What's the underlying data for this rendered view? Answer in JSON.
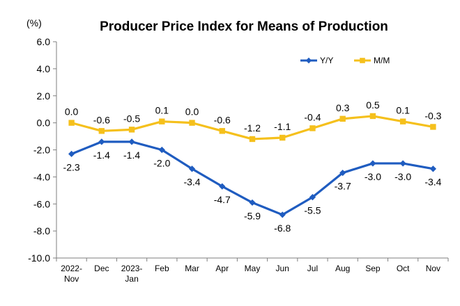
{
  "chart_data": {
    "type": "line",
    "title": "Producer Price Index for Means of Production",
    "unit_label": "(%)",
    "xlabel": "",
    "ylabel": "",
    "categories": [
      [
        "2022-",
        "Nov"
      ],
      [
        "Dec"
      ],
      [
        "2023-",
        "Jan"
      ],
      [
        "Feb"
      ],
      [
        "Mar"
      ],
      [
        "Apr"
      ],
      [
        "May"
      ],
      [
        "Jun"
      ],
      [
        "Jul"
      ],
      [
        "Aug"
      ],
      [
        "Sep"
      ],
      [
        "Oct"
      ],
      [
        "Nov"
      ]
    ],
    "ylim": [
      -10.0,
      6.0
    ],
    "yticks": [
      6.0,
      4.0,
      2.0,
      0.0,
      -2.0,
      -4.0,
      -6.0,
      -8.0,
      -10.0
    ],
    "ytick_labels": [
      "6.0",
      "4.0",
      "2.0",
      "0.0",
      "-2.0",
      "-4.0",
      "-6.0",
      "-8.0",
      "-10.0"
    ],
    "grid": false,
    "legend_position": "top-right",
    "series": [
      {
        "name": "Y/Y",
        "color": "#1F5CC0",
        "marker": "diamond",
        "label_position": "below",
        "values": [
          -2.3,
          -1.4,
          -1.4,
          -2.0,
          -3.4,
          -4.7,
          -5.9,
          -6.8,
          -5.5,
          -3.7,
          -3.0,
          -3.0,
          -3.4
        ],
        "labels": [
          "-2.3",
          "-1.4",
          "-1.4",
          "-2.0",
          "-3.4",
          "-4.7",
          "-5.9",
          "-6.8",
          "-5.5",
          "-3.7",
          "-3.0",
          "-3.0",
          "-3.4"
        ]
      },
      {
        "name": "M/M",
        "color": "#F5C01C",
        "marker": "square",
        "label_position": "above",
        "values": [
          0.0,
          -0.6,
          -0.5,
          0.1,
          0.0,
          -0.6,
          -1.2,
          -1.1,
          -0.4,
          0.3,
          0.5,
          0.1,
          -0.3
        ],
        "labels": [
          "0.0",
          "-0.6",
          "-0.5",
          "0.1",
          "0.0",
          "-0.6",
          "-1.2",
          "-1.1",
          "-0.4",
          "0.3",
          "0.5",
          "0.1",
          "-0.3"
        ]
      }
    ]
  }
}
